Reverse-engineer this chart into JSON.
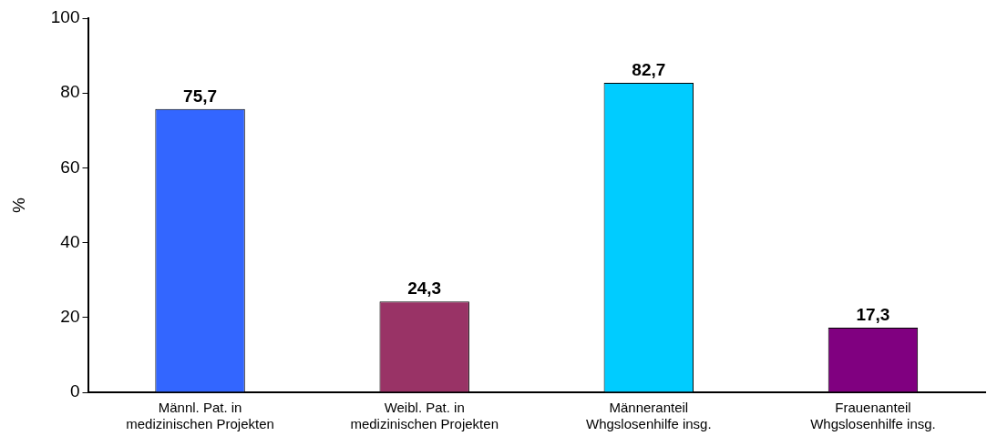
{
  "chart_data": {
    "type": "bar",
    "ylabel": "%",
    "categories": [
      "Männl. Pat. in\nmedizinischen Projekten",
      "Weibl. Pat. in\nmedizinischen Projekten",
      "Männeranteil\nWhgslosenhilfe insg.",
      "Frauenanteil\nWhgslosenhilfe insg."
    ],
    "values": [
      75.7,
      24.3,
      82.7,
      17.3
    ],
    "colors": [
      "#3366ff",
      "#993366",
      "#00ccff",
      "#800080"
    ],
    "value_labels": [
      "75,7",
      "24,3",
      "82,7",
      "17,3"
    ],
    "ylim": [
      0,
      100
    ],
    "yticks": [
      0,
      20,
      40,
      60,
      80,
      100
    ],
    "grid": false,
    "legend": false
  }
}
